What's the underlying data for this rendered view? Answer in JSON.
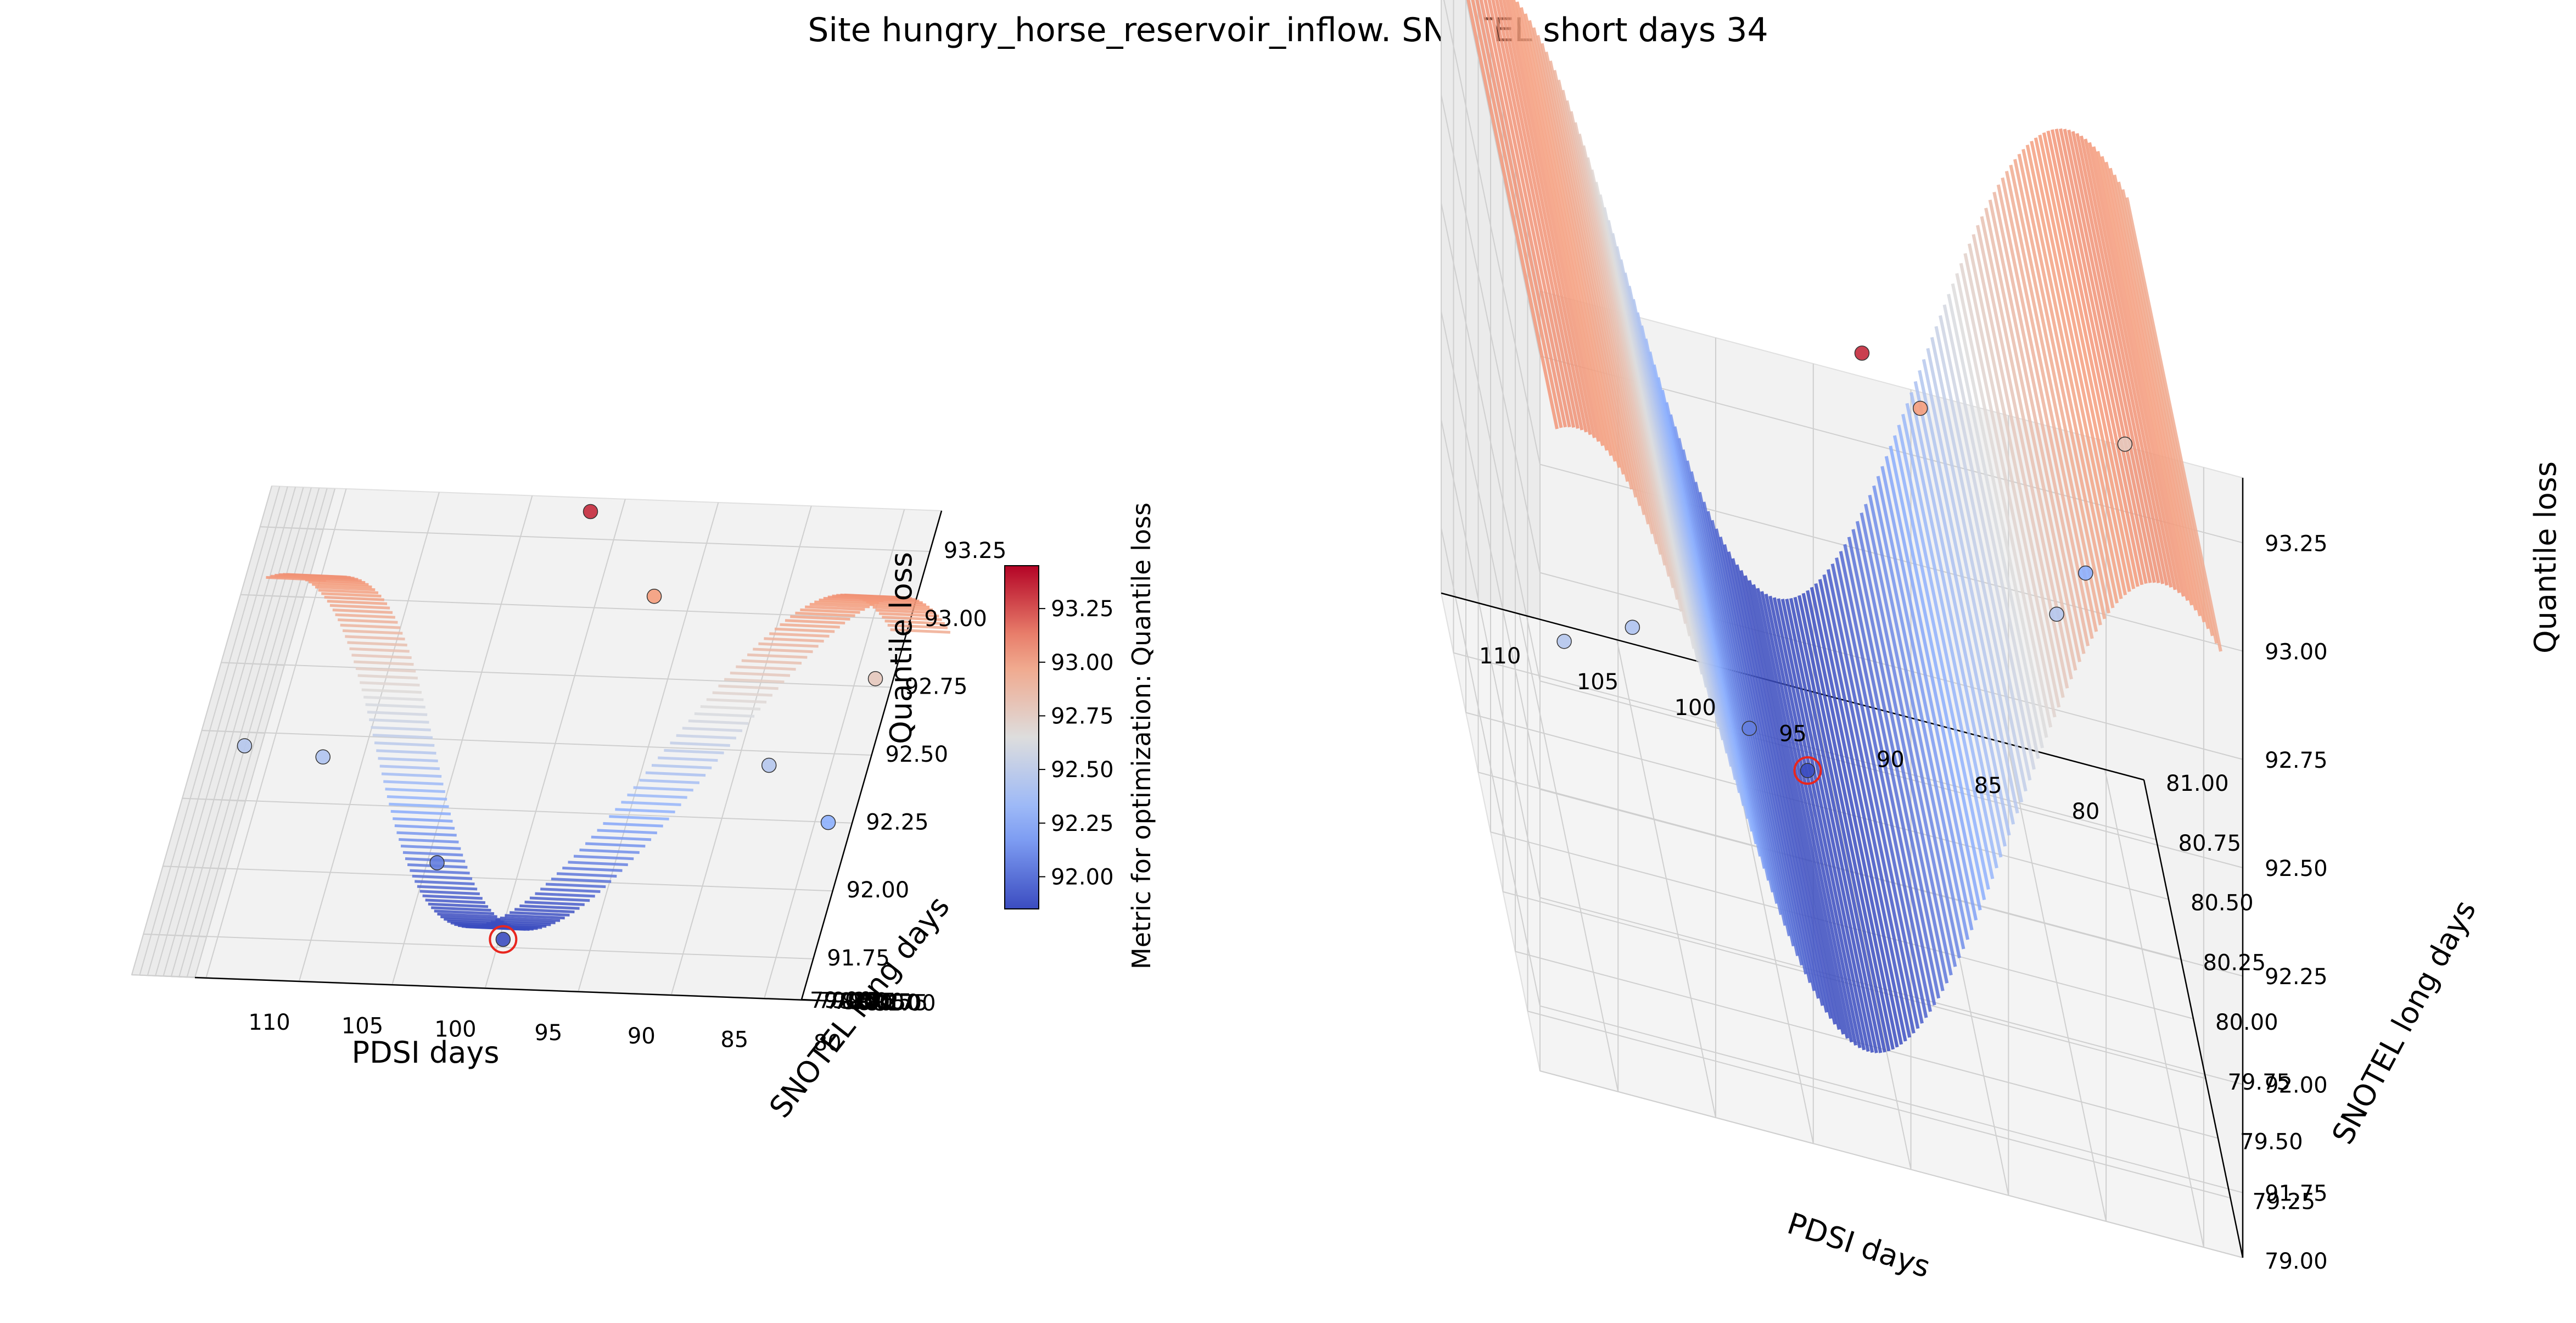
{
  "chart_data": {
    "type": "surface3d",
    "title": "Site hungry_horse_reservoir_inflow. SNOTEL short days 34",
    "colormap": "coolwarm",
    "colors": {
      "low": "#3b4cc0",
      "mid": "#dddddd",
      "high": "#b40426",
      "marker_ring": "#e8261f",
      "pane": "#f2f2f2",
      "grid": "#d0d0d0"
    },
    "colorbar": {
      "label": "Metric for optimization: Quantile loss",
      "range": [
        91.85,
        93.45
      ],
      "ticks": [
        "92.00",
        "92.25",
        "92.50",
        "92.75",
        "93.00",
        "93.25"
      ]
    },
    "axes": {
      "x": {
        "label": "PDSI days",
        "range": [
          78,
          114
        ],
        "ticks": [
          "110",
          "105",
          "100",
          "95",
          "90",
          "85",
          "80"
        ]
      },
      "y": {
        "label": "SNOTEL long days",
        "range": [
          79,
          81
        ],
        "ticks": [
          "79.00",
          "79.25",
          "79.50",
          "79.75",
          "80.00",
          "80.25",
          "80.50",
          "80.75",
          "81.00"
        ]
      },
      "z": {
        "label": "Quantile loss",
        "range": [
          91.6,
          93.4
        ],
        "ticks": [
          "91.75",
          "92.00",
          "92.25",
          "92.50",
          "92.75",
          "93.00",
          "93.25"
        ]
      }
    },
    "best_point": {
      "pdsi_days": 97,
      "snotel_long_days": 80.3,
      "quantile_loss": 91.78
    },
    "points": [
      {
        "pdsi_days": 112,
        "snotel_long_days": 79.3,
        "quantile_loss": 92.45
      },
      {
        "pdsi_days": 108,
        "snotel_long_days": 79.5,
        "quantile_loss": 92.42
      },
      {
        "pdsi_days": 101,
        "snotel_long_days": 79.9,
        "quantile_loss": 92.05
      },
      {
        "pdsi_days": 97,
        "snotel_long_days": 80.3,
        "quantile_loss": 91.78
      },
      {
        "pdsi_days": 97,
        "snotel_long_days": 79.2,
        "quantile_loss": 93.35
      },
      {
        "pdsi_days": 93,
        "snotel_long_days": 79.6,
        "quantile_loss": 93.05
      },
      {
        "pdsi_days": 85,
        "snotel_long_days": 80.0,
        "quantile_loss": 92.45
      },
      {
        "pdsi_days": 81,
        "snotel_long_days": 80.2,
        "quantile_loss": 92.78
      },
      {
        "pdsi_days": 82,
        "snotel_long_days": 80.6,
        "quantile_loss": 92.25
      }
    ],
    "surface_model": "z ≈ 92.45 - 0.63·cos(2π·(pdsi_days − 97)/30); nearly constant along SNOTEL long days",
    "views": [
      {
        "name": "left",
        "description": "near edge-on view, elevation low"
      },
      {
        "name": "right",
        "description": "oblique top view, elevation higher"
      }
    ]
  }
}
